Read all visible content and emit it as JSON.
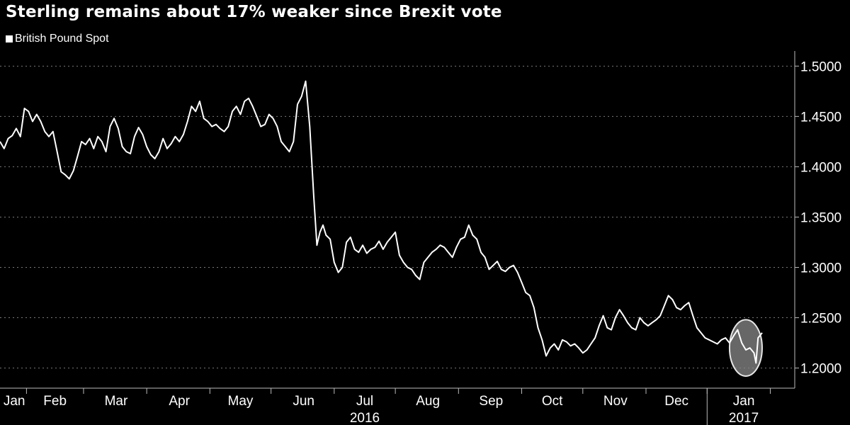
{
  "chart_data": {
    "type": "line",
    "title": "Sterling remains about 17% weaker since Brexit vote",
    "legend": [
      "British Pound Spot"
    ],
    "ylim": [
      1.18,
      1.515
    ],
    "yticks": [
      1.2,
      1.25,
      1.3,
      1.35,
      1.4,
      1.45,
      1.5
    ],
    "ytick_labels": [
      "1.2000",
      "1.2500",
      "1.3000",
      "1.3500",
      "1.4000",
      "1.4500",
      "1.5000"
    ],
    "xlim": [
      0,
      390
    ],
    "month_labels": [
      {
        "label": "Jan",
        "pos": 7
      },
      {
        "label": "Feb",
        "pos": 27
      },
      {
        "label": "Mar",
        "pos": 57
      },
      {
        "label": "Apr",
        "pos": 88
      },
      {
        "label": "May",
        "pos": 118
      },
      {
        "label": "Jun",
        "pos": 149
      },
      {
        "label": "Jul",
        "pos": 179
      },
      {
        "label": "Aug",
        "pos": 210
      },
      {
        "label": "Sep",
        "pos": 241
      },
      {
        "label": "Oct",
        "pos": 271
      },
      {
        "label": "Nov",
        "pos": 302
      },
      {
        "label": "Dec",
        "pos": 332
      },
      {
        "label": "Jan",
        "pos": 365
      }
    ],
    "month_dividers": [
      13,
      41,
      72,
      103,
      133,
      164,
      194,
      225,
      256,
      286,
      317,
      347,
      378
    ],
    "year_labels": [
      {
        "label": "2016",
        "pos": 179
      },
      {
        "label": "2017",
        "pos": 365
      }
    ],
    "year_dividers": [
      347
    ],
    "highlight": {
      "center_x": 366,
      "center_y": 1.22,
      "rx": 8,
      "ry": 0.028
    },
    "series": [
      {
        "name": "British Pound Spot",
        "x": [
          0,
          2,
          4,
          6,
          8,
          10,
          12,
          14,
          16,
          18,
          20,
          22,
          24,
          26,
          28,
          30,
          32,
          34,
          36,
          38,
          40,
          42,
          44,
          46,
          48,
          50,
          52,
          54,
          56,
          58,
          60,
          62,
          64,
          66,
          68,
          70,
          72,
          74,
          76,
          78,
          80,
          82,
          84,
          86,
          88,
          90,
          92,
          94,
          96,
          98,
          100,
          102,
          104,
          106,
          108,
          110,
          112,
          114,
          116,
          118,
          120,
          122,
          124,
          126,
          128,
          130,
          132,
          134,
          136,
          138,
          140,
          142,
          144,
          146,
          148,
          150,
          152,
          154,
          155.5,
          157,
          158.5,
          160,
          162,
          164,
          166,
          168,
          170,
          172,
          174,
          176,
          178,
          180,
          182,
          184,
          186,
          188,
          190,
          192,
          194,
          196,
          198,
          200,
          202,
          204,
          206,
          208,
          210,
          212,
          214,
          216,
          218,
          220,
          222,
          224,
          226,
          228,
          230,
          232,
          234,
          236,
          238,
          240,
          242,
          244,
          246,
          248,
          250,
          252,
          254,
          256,
          258,
          260,
          262,
          264,
          266,
          268,
          270,
          272,
          274,
          276,
          278,
          280,
          282,
          284,
          286,
          288,
          290,
          292,
          294,
          296,
          298,
          300,
          302,
          304,
          306,
          308,
          310,
          312,
          314,
          316,
          318,
          320,
          322,
          324,
          326,
          328,
          330,
          332,
          334,
          336,
          338,
          340,
          342,
          344,
          346,
          348,
          350,
          352,
          354,
          356,
          358,
          360,
          362,
          364,
          366,
          368,
          370,
          371,
          372,
          374
        ],
        "values": [
          1.425,
          1.418,
          1.428,
          1.431,
          1.438,
          1.43,
          1.458,
          1.455,
          1.445,
          1.452,
          1.445,
          1.435,
          1.43,
          1.435,
          1.415,
          1.395,
          1.392,
          1.388,
          1.396,
          1.41,
          1.425,
          1.422,
          1.428,
          1.418,
          1.43,
          1.425,
          1.415,
          1.44,
          1.448,
          1.438,
          1.42,
          1.415,
          1.413,
          1.43,
          1.439,
          1.432,
          1.42,
          1.412,
          1.408,
          1.415,
          1.428,
          1.418,
          1.423,
          1.43,
          1.425,
          1.432,
          1.445,
          1.46,
          1.455,
          1.465,
          1.448,
          1.445,
          1.44,
          1.442,
          1.438,
          1.435,
          1.44,
          1.455,
          1.46,
          1.452,
          1.465,
          1.468,
          1.46,
          1.45,
          1.44,
          1.442,
          1.452,
          1.448,
          1.44,
          1.425,
          1.42,
          1.415,
          1.425,
          1.462,
          1.47,
          1.485,
          1.44,
          1.37,
          1.322,
          1.335,
          1.342,
          1.332,
          1.328,
          1.305,
          1.295,
          1.3,
          1.325,
          1.33,
          1.318,
          1.315,
          1.322,
          1.314,
          1.318,
          1.32,
          1.326,
          1.318,
          1.325,
          1.33,
          1.335,
          1.312,
          1.305,
          1.3,
          1.298,
          1.292,
          1.288,
          1.305,
          1.31,
          1.315,
          1.318,
          1.322,
          1.32,
          1.315,
          1.31,
          1.32,
          1.328,
          1.33,
          1.342,
          1.332,
          1.328,
          1.315,
          1.31,
          1.298,
          1.302,
          1.306,
          1.298,
          1.296,
          1.3,
          1.302,
          1.295,
          1.285,
          1.275,
          1.272,
          1.26,
          1.24,
          1.228,
          1.212,
          1.22,
          1.224,
          1.218,
          1.228,
          1.226,
          1.222,
          1.224,
          1.22,
          1.215,
          1.218,
          1.224,
          1.23,
          1.242,
          1.252,
          1.24,
          1.238,
          1.25,
          1.258,
          1.252,
          1.245,
          1.24,
          1.238,
          1.25,
          1.245,
          1.242,
          1.245,
          1.248,
          1.252,
          1.262,
          1.272,
          1.268,
          1.26,
          1.258,
          1.262,
          1.265,
          1.252,
          1.24,
          1.235,
          1.23,
          1.228,
          1.226,
          1.224,
          1.228,
          1.23,
          1.225,
          1.232,
          1.238,
          1.225,
          1.218,
          1.22,
          1.215,
          1.205,
          1.23,
          1.235
        ]
      }
    ]
  }
}
